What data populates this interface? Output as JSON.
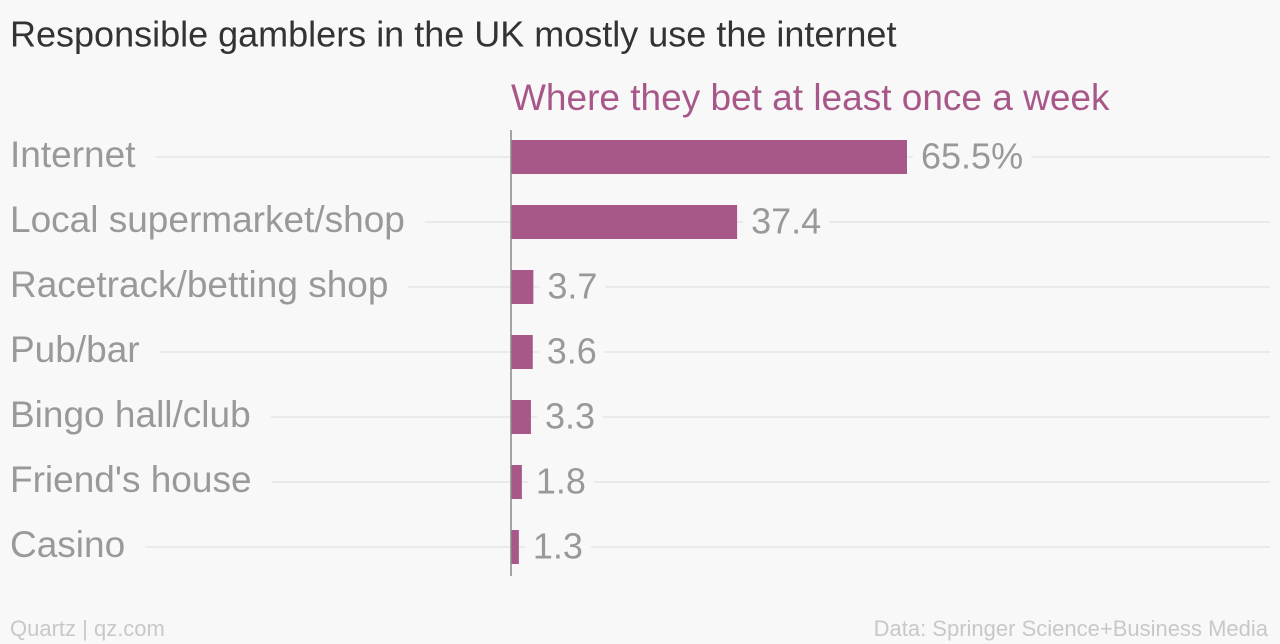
{
  "chart_data": {
    "type": "bar",
    "title": "Responsible gamblers in the UK mostly use the internet",
    "subtitle": "Where they bet at least once a week",
    "categories": [
      "Internet",
      "Local supermarket/shop",
      "Racetrack/betting shop",
      "Pub/bar",
      "Bingo hall/club",
      "Friend's house",
      "Casino"
    ],
    "values": [
      65.5,
      37.4,
      3.7,
      3.6,
      3.3,
      1.8,
      1.3
    ],
    "value_labels": [
      "65.5%",
      "37.4",
      "3.7",
      "3.6",
      "3.3",
      "1.8",
      "1.3"
    ],
    "color": "#a85888",
    "source": "Data: Springer Science+Business Media",
    "credit": "Quartz | qz.com"
  }
}
